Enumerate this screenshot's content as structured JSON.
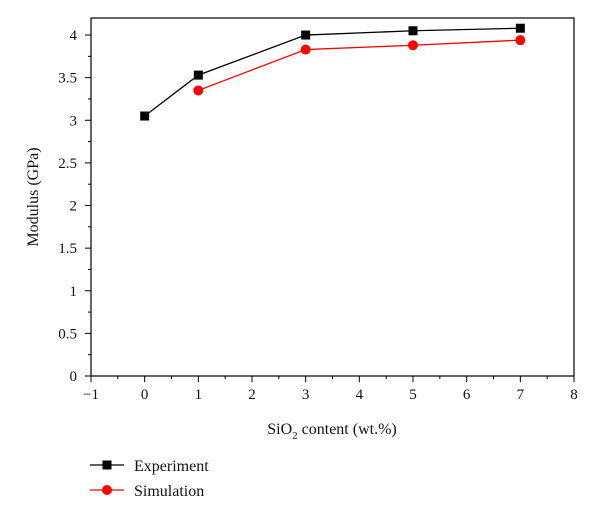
{
  "chart_data": {
    "type": "line",
    "xlabel_main": "SiO",
    "xlabel_sub": "2",
    "xlabel_rest": " content (wt.%)",
    "ylabel": "Modulus (GPa)",
    "xlim": [
      -1,
      8
    ],
    "ylim": [
      0,
      4.2
    ],
    "xticks": [
      -1,
      0,
      1,
      2,
      3,
      4,
      5,
      6,
      7,
      8
    ],
    "xtick_labels": [
      "−1",
      "0",
      "1",
      "2",
      "3",
      "4",
      "5",
      "6",
      "7",
      "8"
    ],
    "yticks": [
      0,
      0.5,
      1,
      1.5,
      2,
      2.5,
      3,
      3.5,
      4
    ],
    "ytick_labels": [
      "0",
      "0.5",
      "1",
      "1.5",
      "2",
      "2.5",
      "3",
      "3.5",
      "4"
    ],
    "grid": false,
    "legend_position": "bottom-left",
    "series": [
      {
        "name": "Experiment",
        "marker": "square",
        "color": "#000000",
        "x": [
          0,
          1,
          3,
          5,
          7
        ],
        "y": [
          3.05,
          3.53,
          4.0,
          4.05,
          4.08
        ]
      },
      {
        "name": "Simulation",
        "marker": "circle",
        "color": "#ff0000",
        "x": [
          1,
          3,
          5,
          7
        ],
        "y": [
          3.35,
          3.83,
          3.88,
          3.94
        ]
      }
    ]
  }
}
